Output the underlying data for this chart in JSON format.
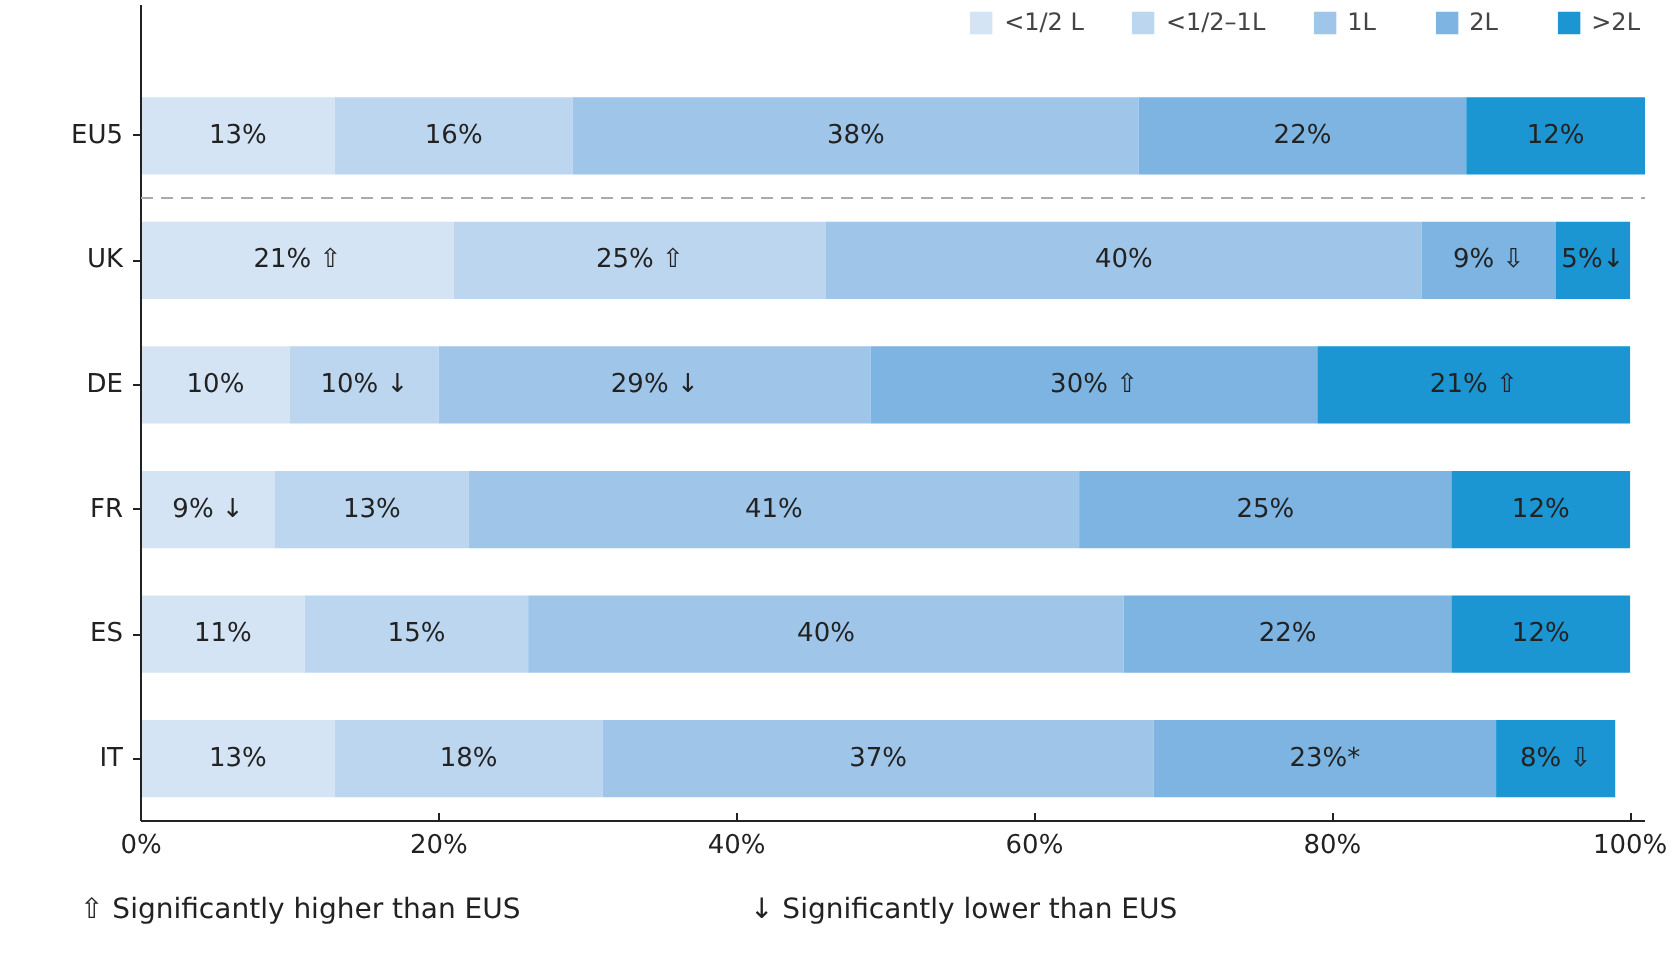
{
  "chart_data": {
    "type": "bar",
    "orientation": "horizontal",
    "stacked": true,
    "categories": [
      "EU5",
      "UK",
      "DE",
      "FR",
      "ES",
      "IT"
    ],
    "series": [
      {
        "name": "<1/2 L",
        "color": "#d4e4f4",
        "values": [
          13,
          21,
          10,
          9,
          11,
          13
        ],
        "value_labels": [
          "13%",
          "21% ⇧",
          "10%",
          "9% ↓",
          "11%",
          "13%"
        ]
      },
      {
        "name": "<1/2–1L",
        "color": "#bcd6f0",
        "values": [
          16,
          25,
          10,
          13,
          15,
          18
        ],
        "value_labels": [
          "16%",
          "25% ⇧",
          "10% ↓",
          "13%",
          "15%",
          "18%"
        ]
      },
      {
        "name": "1L",
        "color": "#9fc5e8",
        "values": [
          38,
          40,
          29,
          41,
          40,
          37
        ],
        "value_labels": [
          "38%",
          "40%",
          "29% ↓",
          "41%",
          "40%",
          "37%"
        ]
      },
      {
        "name": "2L",
        "color": "#7db4e2",
        "values": [
          22,
          9,
          30,
          25,
          22,
          23
        ],
        "value_labels": [
          "22%",
          "9% ⇩",
          "30% ⇧",
          "25%",
          "22%",
          "23%*"
        ]
      },
      {
        "name": ">2L",
        "color": "#1b96d3",
        "values": [
          12,
          5,
          21,
          12,
          12,
          8
        ],
        "value_labels": [
          "12%",
          "5%↓",
          "21% ⇧",
          "12%",
          "12%",
          "8% ⇩"
        ]
      }
    ],
    "xlim": [
      0,
      101
    ],
    "xticks": [
      {
        "value": 0,
        "label": "0%"
      },
      {
        "value": 20,
        "label": "20%"
      },
      {
        "value": 40,
        "label": "40%"
      },
      {
        "value": 60,
        "label": "60%"
      },
      {
        "value": 80,
        "label": "80%"
      },
      {
        "value": 100,
        "label": "100%"
      }
    ],
    "legend": "top right",
    "annotations": [
      "⇧  Significantly higher than EUS",
      "↓  Significantly lower than EUS"
    ]
  }
}
